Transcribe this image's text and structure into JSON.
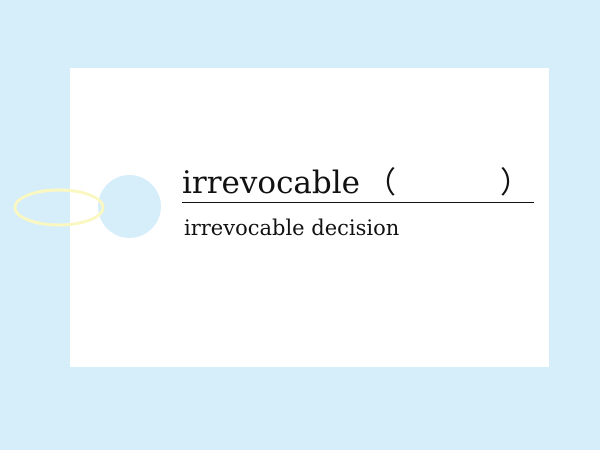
{
  "card": {
    "word": "irrevocable",
    "paren_open": "（",
    "paren_close": "）",
    "example": "irrevocable decision"
  },
  "colors": {
    "background": "#d6eef9",
    "card": "#ffffff",
    "hole": "#d6eef9",
    "string": "#fbf7c0",
    "text": "#111111"
  }
}
